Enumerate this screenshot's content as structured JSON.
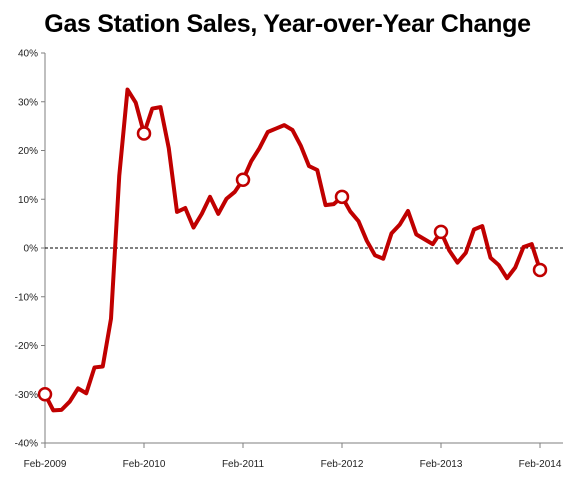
{
  "chart_data": {
    "type": "line",
    "title": "Gas Station Sales, Year-over-Year Change",
    "xlabel": "",
    "ylabel": "",
    "ylim": [
      -40,
      40
    ],
    "y_ticks": [
      -40,
      -30,
      -20,
      -10,
      0,
      10,
      20,
      30,
      40
    ],
    "y_tick_labels": [
      "-40%",
      "-30%",
      "-20%",
      "-10%",
      "0%",
      "10%",
      "20%",
      "30%",
      "40%"
    ],
    "x_range": [
      "2009-02",
      "2014-02"
    ],
    "x_ticks": [
      "2009-02",
      "2010-02",
      "2011-02",
      "2012-02",
      "2013-02",
      "2014-02"
    ],
    "x_tick_labels": [
      "Feb-2009",
      "Feb-2010",
      "Feb-2011",
      "Feb-2012",
      "Feb-2013",
      "Feb-2014"
    ],
    "zero_line": "dashed",
    "grid": false,
    "legend": "none",
    "colors": {
      "line": "#c00000",
      "marker_fill": "#ffffff",
      "zero_line": "#000000",
      "axis": "#7f7f7f"
    },
    "series": [
      {
        "x": [
          "2009-02",
          "2009-03",
          "2009-04",
          "2009-05",
          "2009-06",
          "2009-07",
          "2009-08",
          "2009-09",
          "2009-10",
          "2009-11",
          "2009-12",
          "2010-01",
          "2010-02",
          "2010-03",
          "2010-04",
          "2010-05",
          "2010-06",
          "2010-07",
          "2010-08",
          "2010-09",
          "2010-10",
          "2010-11",
          "2010-12",
          "2011-01",
          "2011-02",
          "2011-03",
          "2011-04",
          "2011-05",
          "2011-06",
          "2011-07",
          "2011-08",
          "2011-09",
          "2011-10",
          "2011-11",
          "2011-12",
          "2012-01",
          "2012-02",
          "2012-03",
          "2012-04",
          "2012-05",
          "2012-06",
          "2012-07",
          "2012-08",
          "2012-09",
          "2012-10",
          "2012-11",
          "2012-12",
          "2013-01",
          "2013-02",
          "2013-03",
          "2013-04",
          "2013-05",
          "2013-06",
          "2013-07",
          "2013-08",
          "2013-09",
          "2013-10",
          "2013-11",
          "2013-12",
          "2014-01",
          "2014-02"
        ],
        "values": [
          -30.0,
          -33.3,
          -33.2,
          -31.5,
          -28.8,
          -29.8,
          -24.5,
          -24.3,
          -14.5,
          14.8,
          32.5,
          29.8,
          23.5,
          28.6,
          28.9,
          20.5,
          7.4,
          8.2,
          4.2,
          7.0,
          10.5,
          7.0,
          10.1,
          11.5,
          14.0,
          17.8,
          20.5,
          23.8,
          24.5,
          25.2,
          24.2,
          21.0,
          16.8,
          16.0,
          8.8,
          9.0,
          10.5,
          7.5,
          5.5,
          1.5,
          -1.5,
          -2.2,
          3.0,
          4.8,
          7.6,
          2.8,
          1.8,
          0.8,
          3.3,
          -0.5,
          -3.0,
          -1.0,
          3.8,
          4.5,
          -2.0,
          -3.5,
          -6.2,
          -4.0,
          0.2,
          0.8,
          -4.5
        ],
        "markers_at": [
          "2009-02",
          "2010-02",
          "2011-02",
          "2012-02",
          "2013-02",
          "2014-02"
        ]
      }
    ]
  }
}
